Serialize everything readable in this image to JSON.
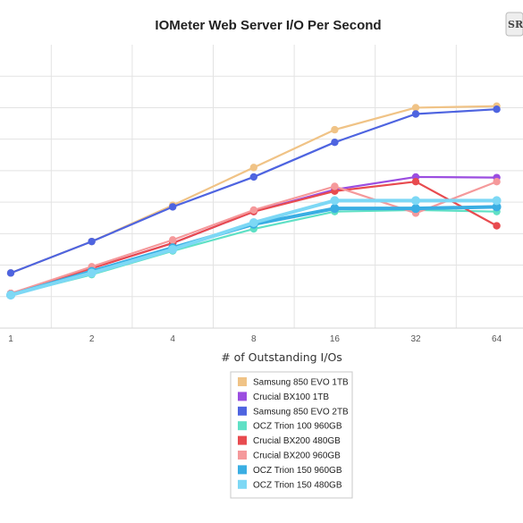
{
  "chart_data": {
    "type": "line",
    "title": "IOMeter Web Server I/O Per Second",
    "xlabel": "# of Outstanding I/Os",
    "ylabel": "",
    "categories": [
      "1",
      "2",
      "4",
      "8",
      "16",
      "32",
      "64"
    ],
    "ylim": [
      0,
      90000
    ],
    "grid": true,
    "legend_position": "bottom",
    "logo_text": "SR",
    "series": [
      {
        "name": "Samsung 850 EVO 1TB",
        "color": "#f0c386",
        "values": [
          17500,
          27500,
          39000,
          51000,
          63000,
          70000,
          70500
        ]
      },
      {
        "name": "Crucial BX100 1TB",
        "color": "#9b4de0",
        "values": [
          11000,
          19000,
          27000,
          37000,
          44000,
          48000,
          47800
        ]
      },
      {
        "name": "Samsung 850 EVO 2TB",
        "color": "#4e64e0",
        "values": [
          17500,
          27500,
          38500,
          48000,
          59000,
          68000,
          69500
        ]
      },
      {
        "name": "OCZ Trion 100 960GB",
        "color": "#5fe0c5",
        "values": [
          10500,
          17000,
          24500,
          31500,
          37000,
          37500,
          37000
        ]
      },
      {
        "name": "Crucial BX200 480GB",
        "color": "#e84b4f",
        "values": [
          11000,
          19000,
          27000,
          37000,
          43500,
          46500,
          32500
        ]
      },
      {
        "name": "Crucial BX200 960GB",
        "color": "#f5999b",
        "values": [
          11000,
          19500,
          28000,
          37500,
          45000,
          36500,
          46500
        ]
      },
      {
        "name": "OCZ Trion 150 960GB",
        "color": "#3aaee3",
        "values": [
          10500,
          18000,
          25500,
          33000,
          38000,
          38000,
          38500
        ]
      },
      {
        "name": "OCZ Trion 150 480GB",
        "color": "#7dd8f5",
        "values": [
          10500,
          17500,
          25000,
          33500,
          40500,
          40500,
          40500
        ]
      }
    ]
  }
}
